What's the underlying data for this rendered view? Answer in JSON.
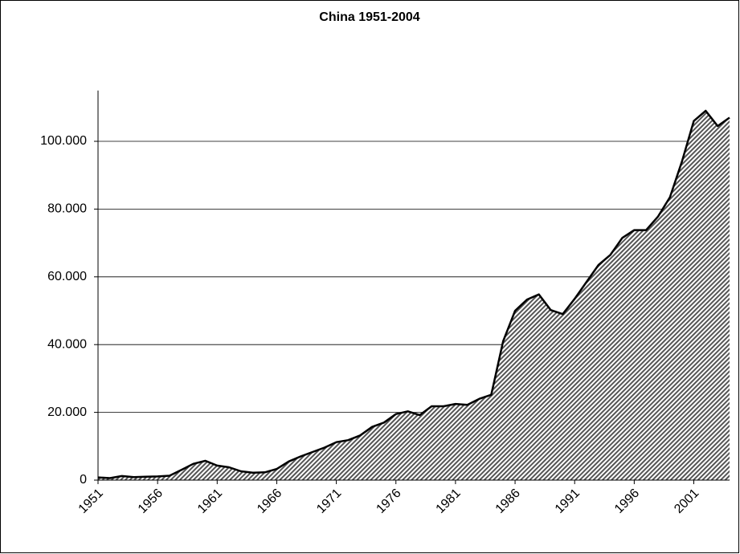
{
  "chart_data": {
    "type": "area",
    "title": "China 1951-2004",
    "x": [
      1951,
      1952,
      1953,
      1954,
      1955,
      1956,
      1957,
      1958,
      1959,
      1960,
      1961,
      1962,
      1963,
      1964,
      1965,
      1966,
      1967,
      1968,
      1969,
      1970,
      1971,
      1972,
      1973,
      1974,
      1975,
      1976,
      1977,
      1978,
      1979,
      1980,
      1981,
      1982,
      1983,
      1984,
      1985,
      1986,
      1987,
      1988,
      1989,
      1990,
      1991,
      1992,
      1993,
      1994,
      1995,
      1996,
      1997,
      1998,
      1999,
      2000,
      2001,
      2002,
      2003,
      2004
    ],
    "values": [
      800,
      600,
      1200,
      900,
      1000,
      1100,
      1300,
      3000,
      4800,
      5700,
      4300,
      3800,
      2600,
      2200,
      2300,
      3300,
      5500,
      7000,
      8300,
      9600,
      11200,
      11800,
      13200,
      15700,
      17000,
      19500,
      20300,
      19200,
      21800,
      21800,
      22500,
      22200,
      24000,
      25200,
      41000,
      50000,
      53300,
      54800,
      50200,
      49000,
      53500,
      58500,
      63500,
      66500,
      71500,
      73800,
      73800,
      77800,
      83500,
      94000,
      106000,
      109000,
      104500,
      107000
    ],
    "color": "#000000",
    "xlim": [
      1951,
      2004
    ],
    "xticks": [
      1951,
      1956,
      1961,
      1966,
      1971,
      1976,
      1981,
      1986,
      1991,
      1996,
      2001
    ],
    "ylim": [
      0,
      115000
    ],
    "yticks": [
      0,
      {
        "value": 20000,
        "label": "20.000"
      },
      {
        "value": 40000,
        "label": "40.000"
      },
      {
        "value": 60000,
        "label": "60.000"
      },
      {
        "value": 80000,
        "label": "80.000"
      },
      {
        "value": 100000,
        "label": "100.000"
      }
    ],
    "grid": true
  }
}
